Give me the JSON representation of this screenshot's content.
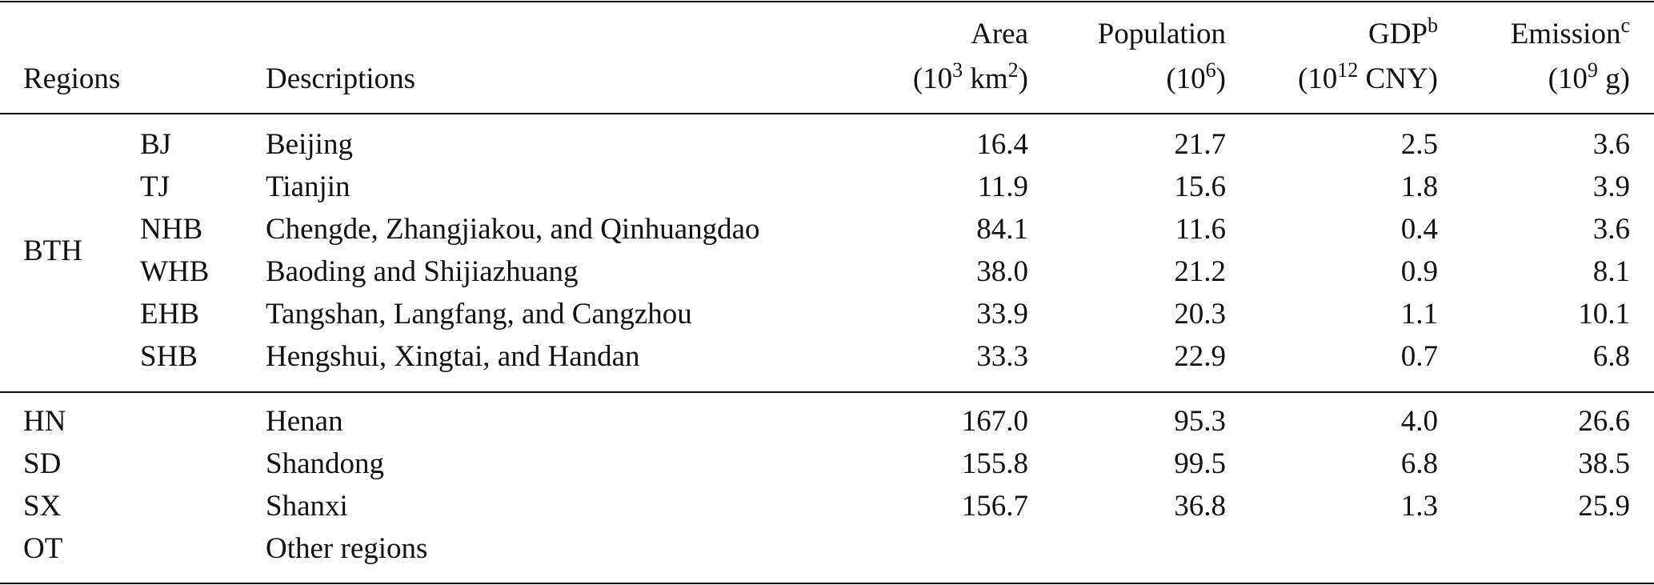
{
  "header": {
    "regions": "Regions",
    "descriptions": "Descriptions",
    "columns": [
      {
        "name": [
          {
            "text": "Area"
          }
        ],
        "unit": [
          {
            "text": "(10"
          },
          {
            "text": "3",
            "sup": true
          },
          {
            "text": " km"
          },
          {
            "text": "2",
            "sup": true
          },
          {
            "text": ")"
          }
        ]
      },
      {
        "name": [
          {
            "text": "Population"
          }
        ],
        "unit": [
          {
            "text": "(10"
          },
          {
            "text": "6",
            "sup": true
          },
          {
            "text": ")"
          }
        ]
      },
      {
        "name": [
          {
            "text": "GDP"
          },
          {
            "text": "b",
            "sup": true
          }
        ],
        "unit": [
          {
            "text": "(10"
          },
          {
            "text": "12",
            "sup": true
          },
          {
            "text": " CNY)"
          }
        ]
      },
      {
        "name": [
          {
            "text": "Emission"
          },
          {
            "text": "c",
            "sup": true
          }
        ],
        "unit": [
          {
            "text": "(10"
          },
          {
            "text": "9",
            "sup": true
          },
          {
            "text": " g)"
          }
        ]
      }
    ]
  },
  "table": {
    "sections": [
      {
        "group": "BTH",
        "rows": [
          {
            "code": "BJ",
            "description": "Beijing",
            "values": [
              "16.4",
              "21.7",
              "2.5",
              "3.6"
            ]
          },
          {
            "code": "TJ",
            "description": "Tianjin",
            "values": [
              "11.9",
              "15.6",
              "1.8",
              "3.9"
            ]
          },
          {
            "code": "NHB",
            "description": "Chengde, Zhangjiakou, and Qinhuangdao",
            "values": [
              "84.1",
              "11.6",
              "0.4",
              "3.6"
            ]
          },
          {
            "code": "WHB",
            "description": "Baoding and Shijiazhuang",
            "values": [
              "38.0",
              "21.2",
              "0.9",
              "8.1"
            ]
          },
          {
            "code": "EHB",
            "description": "Tangshan, Langfang, and Cangzhou",
            "values": [
              "33.9",
              "20.3",
              "1.1",
              "10.1"
            ]
          },
          {
            "code": "SHB",
            "description": "Hengshui, Xingtai, and Handan",
            "values": [
              "33.3",
              "22.9",
              "0.7",
              "6.8"
            ]
          }
        ]
      },
      {
        "rows": [
          {
            "code": "HN",
            "description": "Henan",
            "values": [
              "167.0",
              "95.3",
              "4.0",
              "26.6"
            ]
          },
          {
            "code": "SD",
            "description": "Shandong",
            "values": [
              "155.8",
              "99.5",
              "6.8",
              "38.5"
            ]
          },
          {
            "code": "SX",
            "description": "Shanxi",
            "values": [
              "156.7",
              "36.8",
              "1.3",
              "25.9"
            ]
          },
          {
            "code": "OT",
            "description": "Other regions",
            "values": []
          }
        ]
      }
    ]
  }
}
